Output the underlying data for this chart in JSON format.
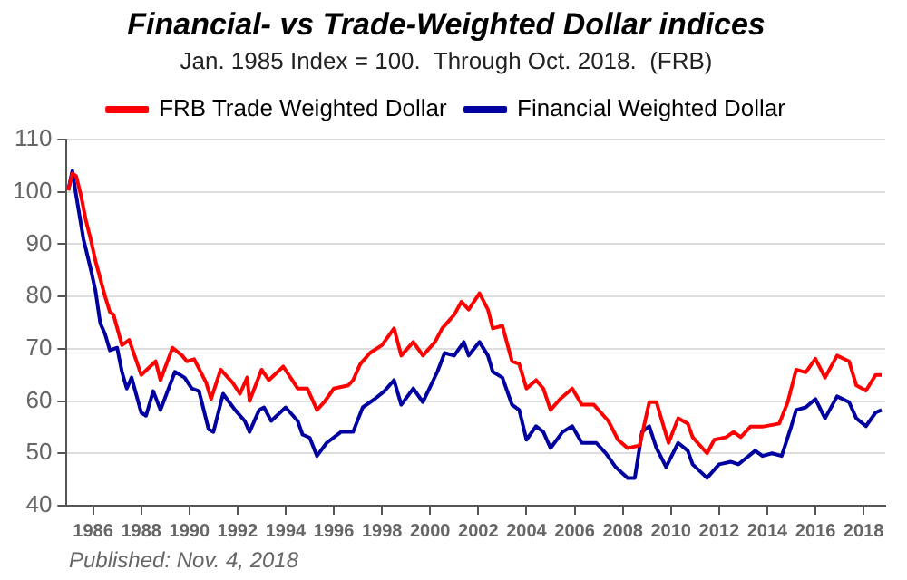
{
  "chart_data": {
    "type": "line",
    "title": "Financial- vs Trade-Weighted Dollar indices",
    "subtitle": "Jan. 1985 Index = 100.  Through Oct. 2018.  (FRB)",
    "annotations": [
      "Published: Nov. 4, 2018"
    ],
    "legend": "top",
    "grid": "y",
    "marker": "none",
    "line_style": "solid",
    "xlim": [
      1984.9,
      2018.9
    ],
    "xticks": [
      1986,
      1988,
      1990,
      1992,
      1994,
      1996,
      1998,
      2000,
      2002,
      2004,
      2006,
      2008,
      2010,
      2012,
      2014,
      2016,
      2018
    ],
    "ylim": [
      40,
      110
    ],
    "yticks": [
      40,
      50,
      60,
      70,
      80,
      90,
      100,
      110
    ],
    "series": [
      {
        "name": "FRB Trade Weighted Dollar",
        "color": "#ff0000",
        "x": [
          1984.97,
          1985.14,
          1985.3,
          1985.5,
          1985.7,
          1985.9,
          1986.1,
          1986.5,
          1986.7,
          1986.85,
          1987.2,
          1987.5,
          1988,
          1988.6,
          1988.8,
          1989.3,
          1989.7,
          1989.9,
          1990.2,
          1990.7,
          1990.9,
          1991.3,
          1991.8,
          1992.1,
          1992.4,
          1992.5,
          1993,
          1993.3,
          1993.9,
          1994.5,
          1994.9,
          1995.3,
          1995.6,
          1996,
          1996.6,
          1996.8,
          1997.1,
          1997.5,
          1998,
          1998.5,
          1998.8,
          1999.3,
          1999.7,
          2000.2,
          2000.5,
          2001,
          2001.3,
          2001.6,
          2002.05,
          2002.4,
          2002.6,
          2003,
          2003.4,
          2003.7,
          2004,
          2004.4,
          2004.7,
          2005,
          2005.4,
          2005.9,
          2006.3,
          2006.8,
          2007.4,
          2007.8,
          2008.2,
          2008.7,
          2009.1,
          2009.4,
          2009.7,
          2009.9,
          2010.3,
          2010.7,
          2010.9,
          2011.5,
          2011.8,
          2012.3,
          2012.6,
          2012.9,
          2013.3,
          2013.8,
          2014.5,
          2014.85,
          2015.2,
          2015.6,
          2016,
          2016.4,
          2016.9,
          2017.4,
          2017.7,
          2018.1,
          2018.5,
          2018.75
        ],
        "values": [
          100.3,
          103.5,
          103,
          99.3,
          94.6,
          91,
          86.8,
          80,
          77,
          76.5,
          70.7,
          71.7,
          65,
          67.6,
          64,
          70.2,
          68.7,
          67.6,
          68,
          63.5,
          60.4,
          66,
          63.5,
          61.4,
          64.5,
          60,
          66,
          64,
          66.6,
          62.4,
          62.4,
          58.3,
          59.8,
          62.4,
          63,
          64,
          67.1,
          69.2,
          70.7,
          73.9,
          68.7,
          71.3,
          68.7,
          71.3,
          73.9,
          76.5,
          79,
          77.5,
          80.6,
          77.5,
          73.9,
          74.4,
          67.6,
          67.1,
          62.4,
          64,
          62.4,
          58.3,
          60.4,
          62.4,
          59.3,
          59.3,
          56.2,
          52.6,
          51,
          51.5,
          59.8,
          59.8,
          55.1,
          52,
          56.7,
          55.7,
          53.1,
          50,
          52.6,
          53.1,
          54.1,
          53.1,
          55.1,
          55.1,
          55.7,
          59.8,
          66,
          65.5,
          68.1,
          64.5,
          68.7,
          67.6,
          63,
          62,
          65,
          65
        ]
      },
      {
        "name": "Financial Weighted Dollar",
        "color": "#0000a0",
        "x": [
          1984.97,
          1985.14,
          1985.3,
          1985.6,
          1985.9,
          1986.1,
          1986.3,
          1986.5,
          1986.7,
          1987,
          1987.2,
          1987.4,
          1987.6,
          1988,
          1988.2,
          1988.5,
          1988.8,
          1989.4,
          1989.8,
          1990.1,
          1990.4,
          1990.8,
          1991,
          1991.4,
          1991.9,
          1992.3,
          1992.5,
          1992.9,
          1993.1,
          1993.4,
          1994,
          1994.5,
          1994.7,
          1995,
          1995.3,
          1995.7,
          1996.3,
          1996.8,
          1997.2,
          1997.7,
          1998.1,
          1998.5,
          1998.8,
          1999.3,
          1999.7,
          2000.3,
          2000.6,
          2001,
          2001.4,
          2001.6,
          2002.05,
          2002.4,
          2002.6,
          2003,
          2003.4,
          2003.7,
          2004,
          2004.4,
          2004.7,
          2005,
          2005.5,
          2005.9,
          2006.3,
          2006.9,
          2007.3,
          2007.7,
          2008.2,
          2008.5,
          2008.8,
          2009.1,
          2009.4,
          2009.8,
          2010.3,
          2010.7,
          2010.9,
          2011.5,
          2012,
          2012.5,
          2012.8,
          2013.5,
          2013.8,
          2014.2,
          2014.6,
          2015,
          2015.2,
          2015.6,
          2016,
          2016.4,
          2016.9,
          2017.4,
          2017.7,
          2018.1,
          2018.5,
          2018.75
        ],
        "values": [
          100.3,
          104,
          99.3,
          91,
          85.3,
          81.1,
          74.9,
          72.8,
          69.7,
          70.2,
          65.6,
          62.4,
          64.5,
          57.8,
          57.2,
          61.9,
          58.3,
          65.6,
          64.5,
          62.4,
          61.9,
          54.6,
          54.1,
          61.4,
          58.3,
          56.2,
          54.1,
          58.3,
          58.8,
          56.2,
          58.8,
          56.2,
          53.6,
          53,
          49.5,
          52,
          54.1,
          54.1,
          58.8,
          60.4,
          61.9,
          64,
          59.3,
          62.4,
          59.8,
          65.6,
          69.2,
          68.7,
          71.3,
          68.7,
          71.3,
          68.7,
          65.6,
          64.5,
          59.3,
          58.3,
          52.6,
          55.2,
          54.1,
          51,
          54.1,
          55.2,
          52,
          52,
          50,
          47.4,
          45.3,
          45.3,
          54.1,
          55.2,
          51,
          47.4,
          52,
          50.5,
          47.9,
          45.3,
          47.9,
          48.4,
          47.9,
          50.5,
          49.5,
          50,
          49.5,
          55.2,
          58.3,
          58.8,
          60.4,
          56.7,
          60.9,
          59.8,
          56.7,
          55.2,
          57.8,
          58.3
        ]
      }
    ]
  }
}
